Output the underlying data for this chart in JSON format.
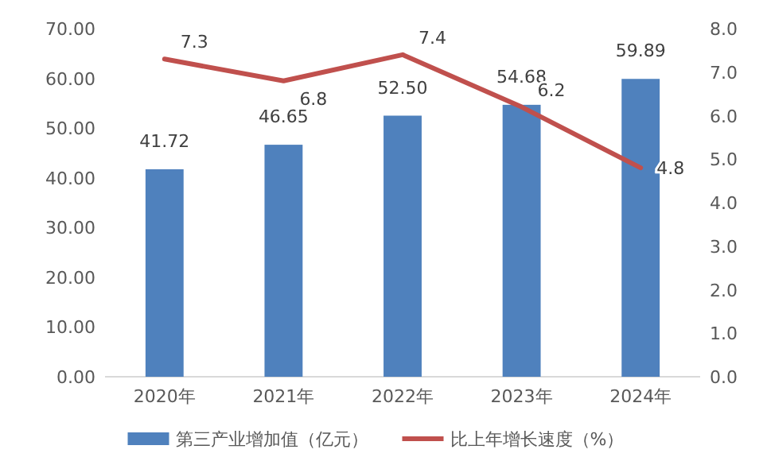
{
  "chart_data": {
    "type": "bar",
    "categories": [
      "2020年",
      "2021年",
      "2022年",
      "2023年",
      "2024年"
    ],
    "series": [
      {
        "name": "第三产业增加值（亿元）",
        "type": "bar",
        "color": "#4f81bd",
        "values": [
          41.72,
          46.65,
          52.5,
          54.68,
          59.89
        ],
        "value_labels": [
          "41.72",
          "46.65",
          "52.50",
          "54.68",
          "59.89"
        ]
      },
      {
        "name": "比上年增长速度（%）",
        "type": "line",
        "axis": "y2",
        "color": "#c0504d",
        "values": [
          7.3,
          6.8,
          7.4,
          6.2,
          4.8
        ],
        "value_labels": [
          "7.3",
          "6.8",
          "7.4",
          "6.2",
          "4.8"
        ]
      }
    ],
    "ylim": [
      0,
      70
    ],
    "yticks": [
      {
        "value": 0,
        "label": "0.00"
      },
      {
        "value": 10,
        "label": "10.00"
      },
      {
        "value": 20,
        "label": "20.00"
      },
      {
        "value": 30,
        "label": "30.00"
      },
      {
        "value": 40,
        "label": "40.00"
      },
      {
        "value": 50,
        "label": "50.00"
      },
      {
        "value": 60,
        "label": "60.00"
      },
      {
        "value": 70,
        "label": "70.00"
      }
    ],
    "y2lim": [
      0,
      8
    ],
    "y2ticks": [
      {
        "value": 0,
        "label": "0.0"
      },
      {
        "value": 1,
        "label": "1.0"
      },
      {
        "value": 2,
        "label": "2.0"
      },
      {
        "value": 3,
        "label": "3.0"
      },
      {
        "value": 4,
        "label": "4.0"
      },
      {
        "value": 5,
        "label": "5.0"
      },
      {
        "value": 6,
        "label": "6.0"
      },
      {
        "value": 7,
        "label": "7.0"
      },
      {
        "value": 8,
        "label": "8.0"
      }
    ],
    "legend": "bottom",
    "grid": false,
    "marker": "none",
    "line_style": "solid"
  }
}
